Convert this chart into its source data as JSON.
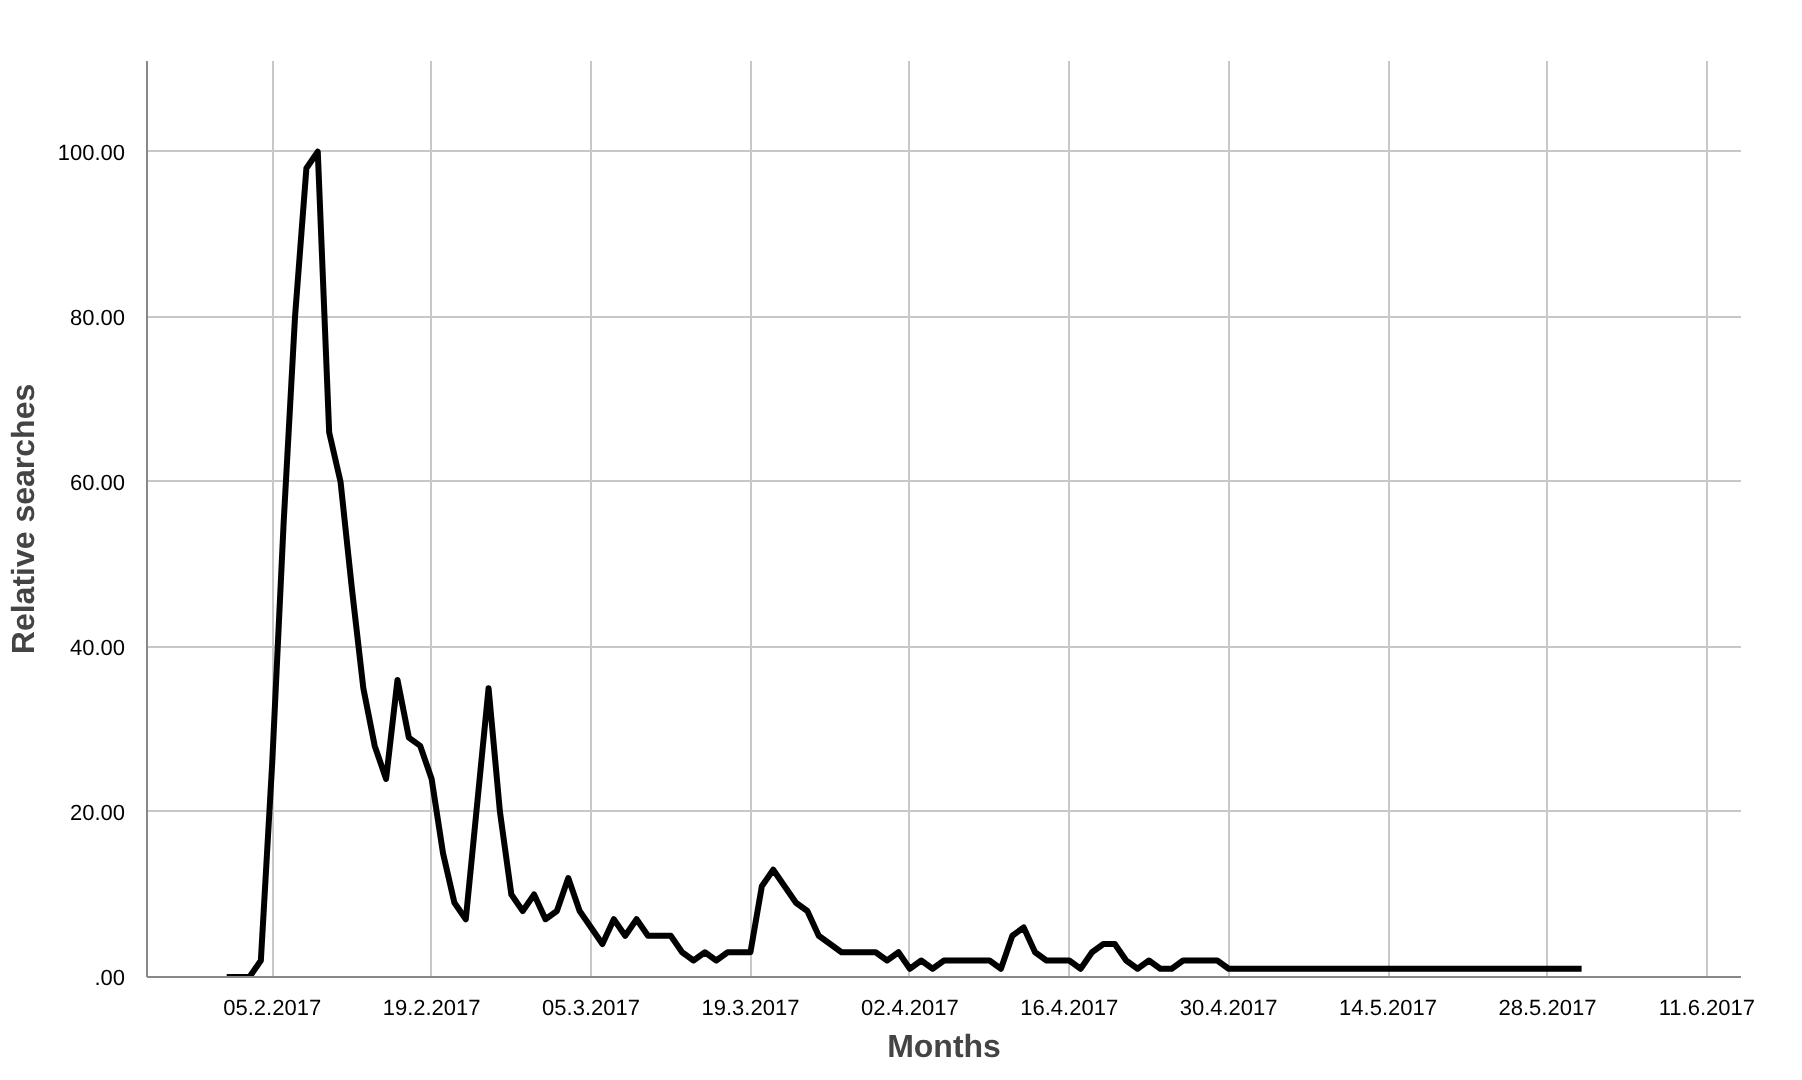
{
  "chart_data": {
    "type": "line",
    "xlabel": "Months",
    "ylabel": "Relative searches",
    "x": [
      "2017-02-01",
      "2017-02-02",
      "2017-02-03",
      "2017-02-04",
      "2017-02-05",
      "2017-02-06",
      "2017-02-07",
      "2017-02-08",
      "2017-02-09",
      "2017-02-10",
      "2017-02-11",
      "2017-02-12",
      "2017-02-13",
      "2017-02-14",
      "2017-02-15",
      "2017-02-16",
      "2017-02-17",
      "2017-02-18",
      "2017-02-19",
      "2017-02-20",
      "2017-02-21",
      "2017-02-22",
      "2017-02-23",
      "2017-02-24",
      "2017-02-25",
      "2017-02-26",
      "2017-02-27",
      "2017-02-28",
      "2017-03-01",
      "2017-03-02",
      "2017-03-03",
      "2017-03-04",
      "2017-03-05",
      "2017-03-06",
      "2017-03-07",
      "2017-03-08",
      "2017-03-09",
      "2017-03-10",
      "2017-03-11",
      "2017-03-12",
      "2017-03-13",
      "2017-03-14",
      "2017-03-15",
      "2017-03-16",
      "2017-03-17",
      "2017-03-18",
      "2017-03-19",
      "2017-03-20",
      "2017-03-21",
      "2017-03-22",
      "2017-03-23",
      "2017-03-24",
      "2017-03-25",
      "2017-03-26",
      "2017-03-27",
      "2017-03-28",
      "2017-03-29",
      "2017-03-30",
      "2017-03-31",
      "2017-04-01",
      "2017-04-02",
      "2017-04-03",
      "2017-04-04",
      "2017-04-05",
      "2017-04-06",
      "2017-04-07",
      "2017-04-08",
      "2017-04-09",
      "2017-04-10",
      "2017-04-11",
      "2017-04-12",
      "2017-04-13",
      "2017-04-14",
      "2017-04-15",
      "2017-04-16",
      "2017-04-17",
      "2017-04-18",
      "2017-04-19",
      "2017-04-20",
      "2017-04-21",
      "2017-04-22",
      "2017-04-23",
      "2017-04-24",
      "2017-04-25",
      "2017-04-26",
      "2017-04-27",
      "2017-04-28",
      "2017-04-29",
      "2017-04-30",
      "2017-05-01",
      "2017-05-02",
      "2017-05-03",
      "2017-05-04",
      "2017-05-05",
      "2017-05-06",
      "2017-05-07",
      "2017-05-08",
      "2017-05-09",
      "2017-05-10",
      "2017-05-11",
      "2017-05-12",
      "2017-05-13",
      "2017-05-14",
      "2017-05-15",
      "2017-05-16",
      "2017-05-17",
      "2017-05-18",
      "2017-05-19",
      "2017-05-20",
      "2017-05-21",
      "2017-05-22",
      "2017-05-23",
      "2017-05-24",
      "2017-05-25",
      "2017-05-26",
      "2017-05-27",
      "2017-05-28",
      "2017-05-29",
      "2017-05-30",
      "2017-05-31"
    ],
    "series": [
      {
        "color": "#000000",
        "values": [
          0,
          0,
          0,
          2,
          26,
          55,
          80,
          98,
          100,
          66,
          60,
          47,
          35,
          28,
          24,
          36,
          29,
          28,
          24,
          15,
          9,
          7,
          21,
          35,
          20,
          10,
          8,
          10,
          7,
          8,
          12,
          8,
          6,
          4,
          7,
          5,
          7,
          5,
          5,
          5,
          3,
          2,
          3,
          2,
          3,
          3,
          3,
          11,
          13,
          11,
          9,
          8,
          5,
          4,
          3,
          3,
          3,
          3,
          2,
          3,
          1,
          2,
          1,
          2,
          2,
          2,
          2,
          2,
          1,
          5,
          6,
          3,
          2,
          2,
          2,
          1,
          3,
          4,
          4,
          2,
          1,
          2,
          1,
          1,
          2,
          2,
          2,
          2,
          1,
          1,
          1,
          1,
          1,
          1,
          1,
          1,
          1,
          1,
          1,
          1,
          1,
          1,
          1,
          1,
          1,
          1,
          1,
          1,
          1,
          1,
          1,
          1,
          1,
          1,
          1,
          1,
          1,
          1,
          1,
          1
        ]
      }
    ],
    "xlim": [
      "2017-01-25",
      "2017-06-14"
    ],
    "xticks": [
      {
        "value": "2017-02-05",
        "label": "05.2.2017"
      },
      {
        "value": "2017-02-19",
        "label": "19.2.2017"
      },
      {
        "value": "2017-03-05",
        "label": "05.3.2017"
      },
      {
        "value": "2017-03-19",
        "label": "19.3.2017"
      },
      {
        "value": "2017-04-02",
        "label": "02.4.2017"
      },
      {
        "value": "2017-04-16",
        "label": "16.4.2017"
      },
      {
        "value": "2017-04-30",
        "label": "30.4.2017"
      },
      {
        "value": "2017-05-14",
        "label": "14.5.2017"
      },
      {
        "value": "2017-05-28",
        "label": "28.5.2017"
      },
      {
        "value": "2017-06-11",
        "label": "11.6.2017"
      }
    ],
    "ylim": [
      0,
      111
    ],
    "yticks": [
      {
        "value": 0,
        "label": ".00"
      },
      {
        "value": 20,
        "label": "20.00"
      },
      {
        "value": 40,
        "label": "40.00"
      },
      {
        "value": 60,
        "label": "60.00"
      },
      {
        "value": 80,
        "label": "80.00"
      },
      {
        "value": 100,
        "label": "100.00"
      }
    ],
    "grid": true,
    "line_style": "solid"
  }
}
